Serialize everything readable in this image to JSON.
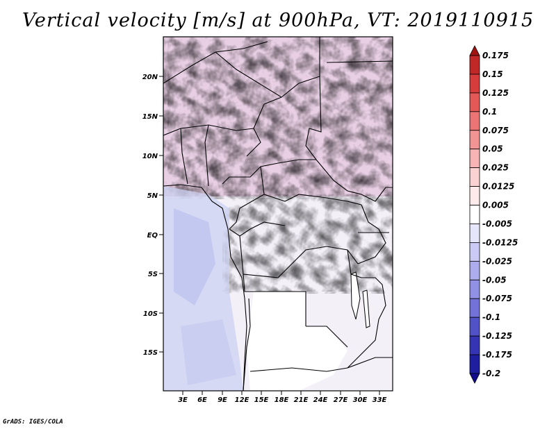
{
  "title": "Vertical velocity [m/s] at 900hPa, VT: 2019110915",
  "footer": "GrADS: IGES/COLA",
  "map": {
    "variable": "Vertical velocity",
    "units": "m/s",
    "level": "900hPa",
    "valid_time": "2019110915",
    "lat_ticks": [
      "20N",
      "15N",
      "10N",
      "5N",
      "EQ",
      "5S",
      "10S",
      "15S"
    ],
    "lon_ticks": [
      "3E",
      "6E",
      "9E",
      "12E",
      "15E",
      "18E",
      "21E",
      "24E",
      "27E",
      "30E",
      "33E"
    ]
  },
  "colorbar": {
    "labels": [
      "0.175",
      "0.15",
      "0.125",
      "0.1",
      "0.075",
      "0.05",
      "0.025",
      "0.0125",
      "0.005",
      "-0.005",
      "-0.0125",
      "-0.025",
      "-0.05",
      "-0.075",
      "-0.1",
      "-0.125",
      "-0.175",
      "-0.2"
    ],
    "colors": [
      "#a01414",
      "#c02828",
      "#d63c3c",
      "#e45858",
      "#ec7474",
      "#f29494",
      "#f6b4b4",
      "#fad2d2",
      "#fdeaea",
      "#ffffff",
      "#e6e6fa",
      "#cacaf4",
      "#adadee",
      "#9090e4",
      "#7272d8",
      "#5252c8",
      "#3434b4",
      "#1e1ea0",
      "#120c8c"
    ]
  }
}
